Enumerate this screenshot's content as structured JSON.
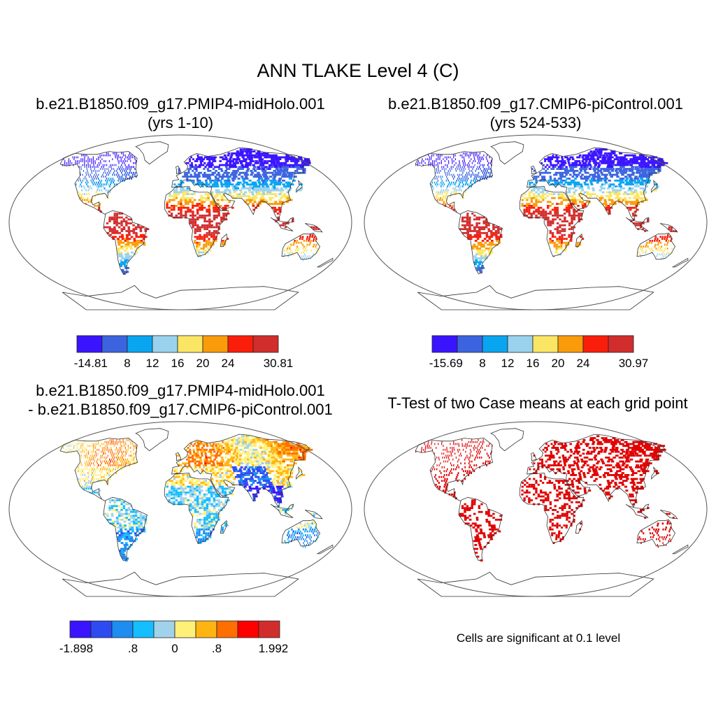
{
  "figure": {
    "title": "ANN TLAKE Level 4 (C)",
    "panels": [
      {
        "id": "p1",
        "title_line1": "b.e21.B1850.f09_g17.PMIP4-midHolo.001",
        "title_line2": "(yrs 1-10)",
        "style": "abs"
      },
      {
        "id": "p2",
        "title_line1": "b.e21.B1850.f09_g17.CMIP6-piControl.001",
        "title_line2": "(yrs 524-533)",
        "style": "abs"
      },
      {
        "id": "p3",
        "title_line1": "b.e21.B1850.f09_g17.PMIP4-midHolo.001",
        "title_line2": "- b.e21.B1850.f09_g17.CMIP6-piControl.001",
        "style": "diff"
      },
      {
        "id": "p4",
        "title_line1": "T-Test of two Case means at each grid point",
        "title_line2": "",
        "style": "ttest"
      }
    ],
    "colorbars": [
      {
        "id": "cb1",
        "colors": [
          "#3a14ff",
          "#3c64e0",
          "#0aa5f0",
          "#9ad2ee",
          "#fae664",
          "#fa9b0a",
          "#fa1e0a",
          "#d22d2d"
        ],
        "labels": [
          "-14.81",
          "8",
          "12",
          "16",
          "20",
          "24",
          "30.81"
        ]
      },
      {
        "id": "cb2",
        "colors": [
          "#3a14ff",
          "#3c64e0",
          "#0aa5f0",
          "#9ad2ee",
          "#fae664",
          "#fa9b0a",
          "#fa1e0a",
          "#d22d2d"
        ],
        "labels": [
          "-15.69",
          "8",
          "12",
          "16",
          "20",
          "24",
          "30.97"
        ]
      },
      {
        "id": "cb3",
        "colors": [
          "#3a14ff",
          "#2d4bf0",
          "#1e8cf0",
          "#14beff",
          "#a0d2eb",
          "#fff078",
          "#ffb414",
          "#ff6e00",
          "#ff0000",
          "#d22d2d"
        ],
        "labels": [
          "-1.898",
          ".8",
          "0",
          ".8",
          "1.992"
        ]
      }
    ],
    "significance_note": "Cells are significant at 0.1 level"
  }
}
